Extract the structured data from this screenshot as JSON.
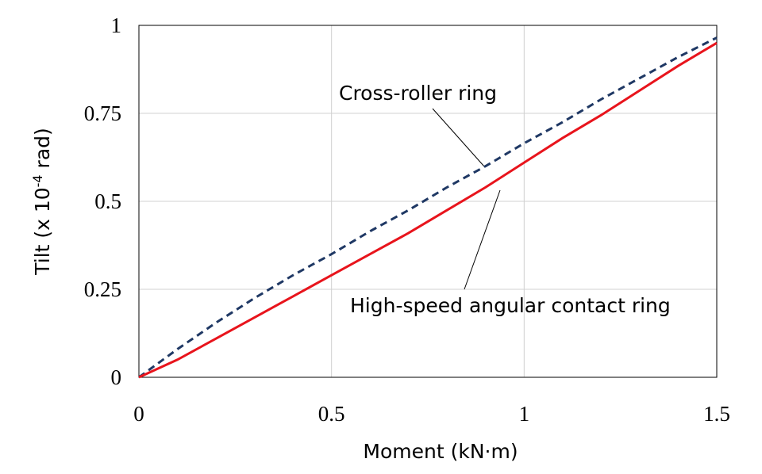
{
  "chart_data": {
    "type": "line",
    "x_label": "Moment (kN·m)",
    "y_label": [
      "Tilt (x 10",
      "-4",
      " rad)"
    ],
    "x": [
      0,
      0.1,
      0.2,
      0.3,
      0.4,
      0.5,
      0.6,
      0.7,
      0.8,
      0.9,
      1,
      1.1,
      1.2,
      1.3,
      1.4,
      1.5
    ],
    "series": [
      {
        "name": "Cross-roller ring",
        "color": "#1f3864",
        "dash": true,
        "values": [
          0,
          0.08,
          0.155,
          0.225,
          0.29,
          0.35,
          0.415,
          0.475,
          0.54,
          0.6,
          0.665,
          0.725,
          0.79,
          0.85,
          0.91,
          0.965
        ]
      },
      {
        "name": "High-speed angular contact ring",
        "color": "#e8141c",
        "dash": false,
        "values": [
          0,
          0.05,
          0.11,
          0.17,
          0.23,
          0.29,
          0.35,
          0.41,
          0.475,
          0.54,
          0.61,
          0.68,
          0.745,
          0.815,
          0.885,
          0.95
        ]
      }
    ],
    "xlim": [
      0,
      1.5
    ],
    "xticks": [
      0,
      0.5,
      1,
      1.5
    ],
    "ylim": [
      0,
      1
    ],
    "yticks": [
      0,
      0.25,
      0.5,
      0.75,
      1
    ],
    "grid": true
  }
}
